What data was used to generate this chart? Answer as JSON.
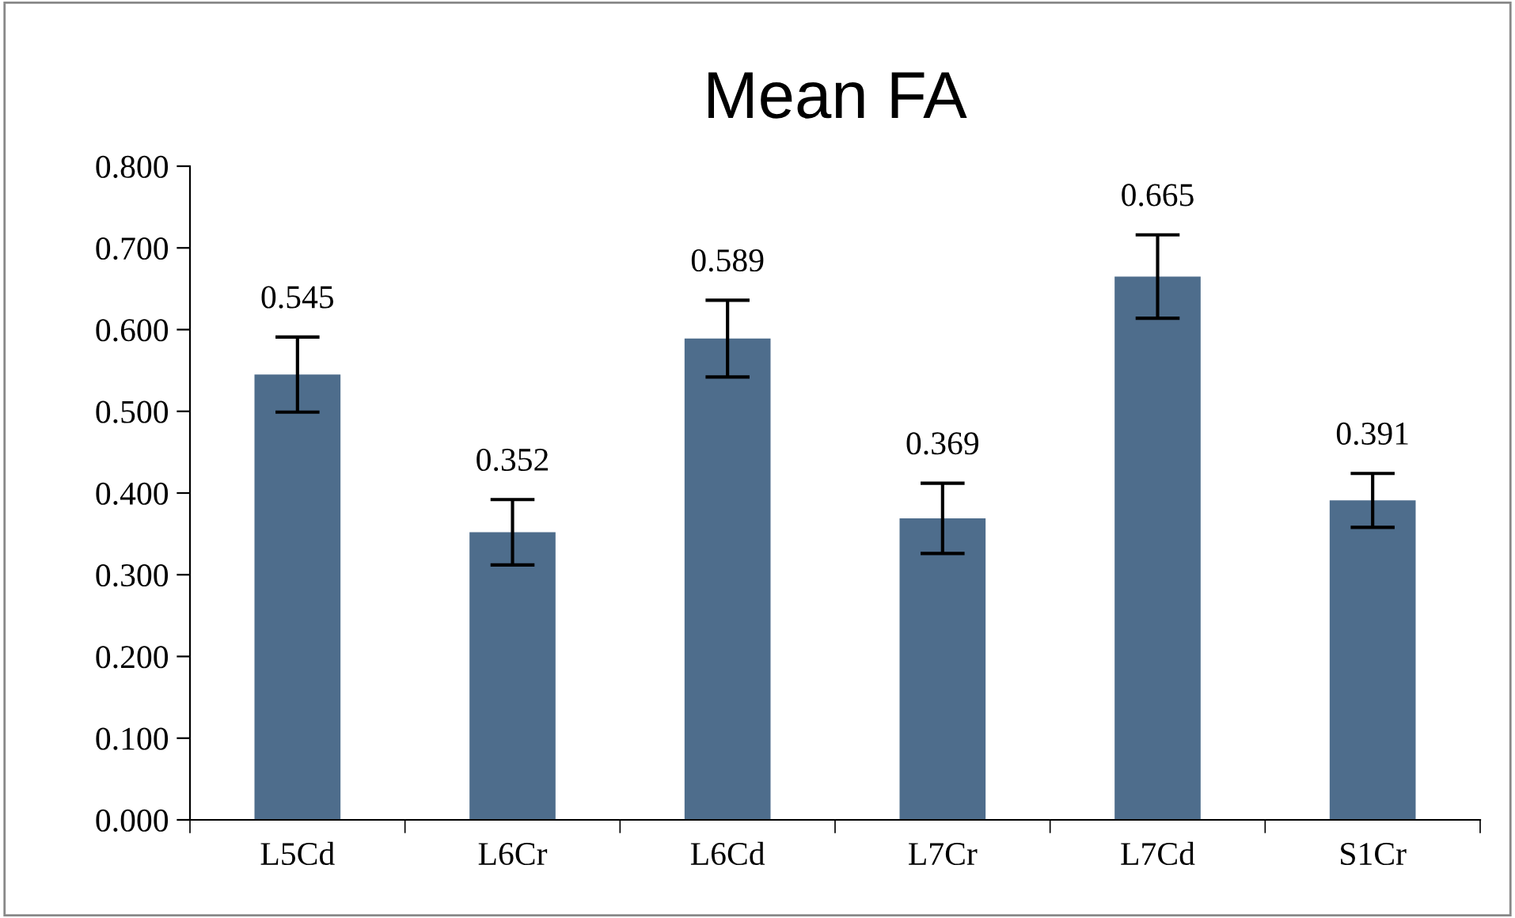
{
  "chart_data": {
    "type": "bar",
    "title": "Mean FA",
    "categories": [
      "L5Cd",
      "L6Cr",
      "L6Cd",
      "L7Cr",
      "L7Cd",
      "S1Cr"
    ],
    "values": [
      0.545,
      0.352,
      0.589,
      0.369,
      0.665,
      0.391
    ],
    "errors": [
      0.046,
      0.04,
      0.047,
      0.043,
      0.051,
      0.033
    ],
    "color": "#4e6d8c",
    "ylim": [
      0,
      0.8
    ],
    "yticks": [
      {
        "value": 0,
        "label": "0.000"
      },
      {
        "value": 0.1,
        "label": "0.100"
      },
      {
        "value": 0.2,
        "label": "0.200"
      },
      {
        "value": 0.3,
        "label": "0.300"
      },
      {
        "value": 0.4,
        "label": "0.400"
      },
      {
        "value": 0.5,
        "label": "0.500"
      },
      {
        "value": 0.6,
        "label": "0.600"
      },
      {
        "value": 0.7,
        "label": "0.700"
      },
      {
        "value": 0.8,
        "label": "0.800"
      }
    ],
    "data_labels": true,
    "grid": false,
    "legend": false
  }
}
